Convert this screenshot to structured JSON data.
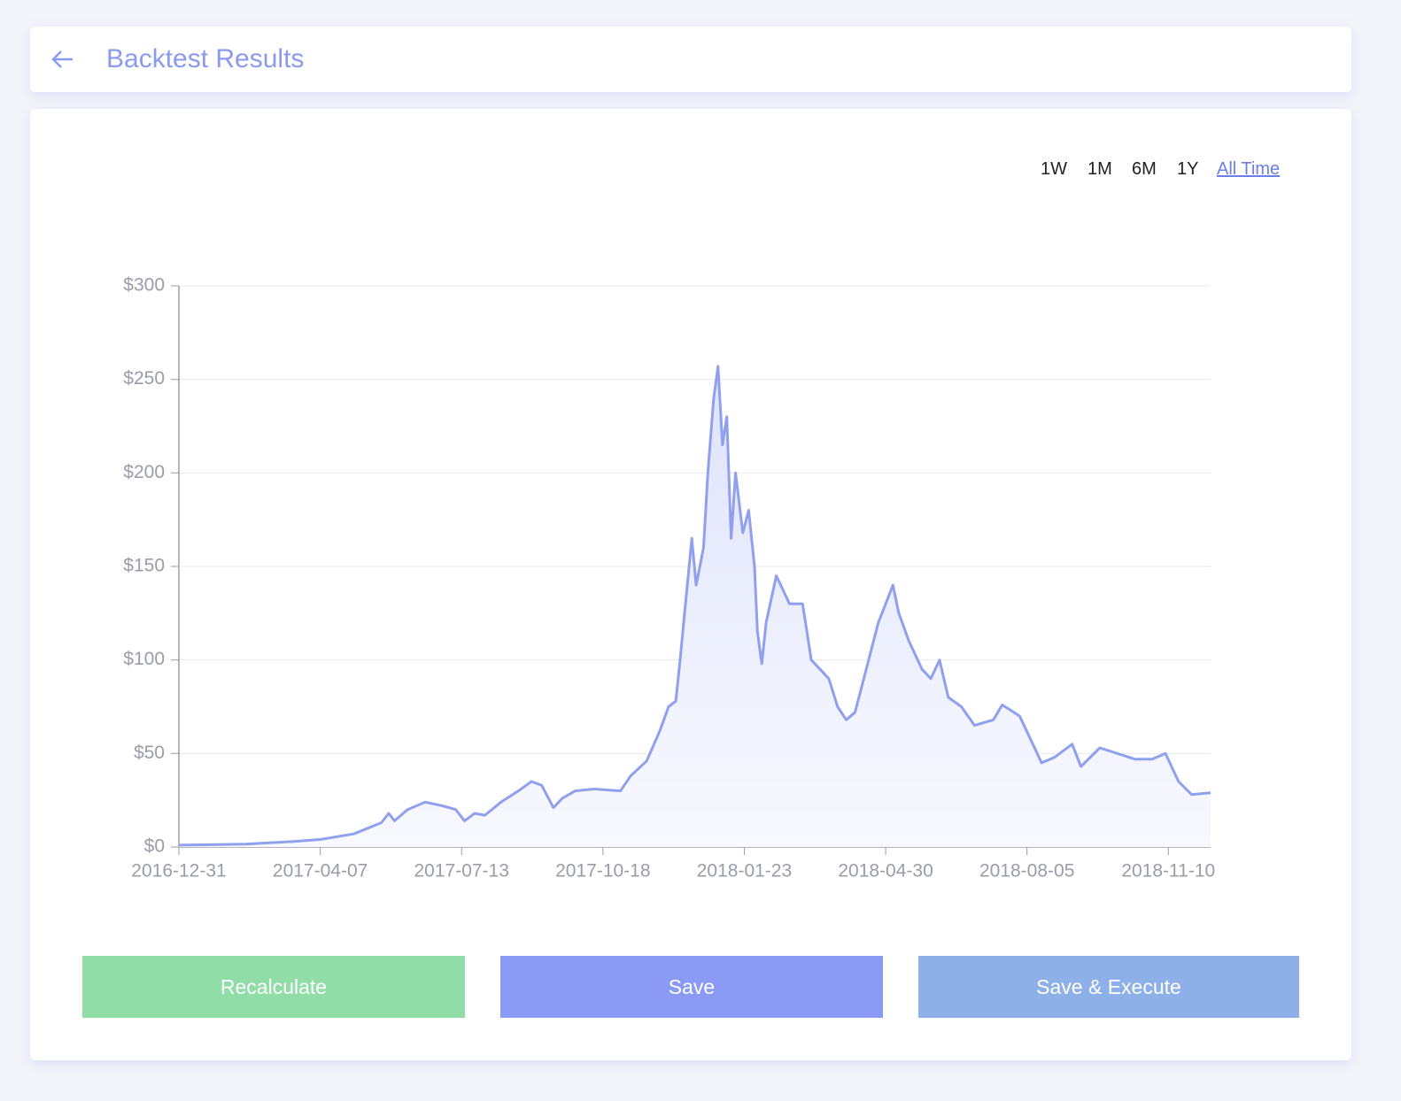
{
  "header": {
    "title": "Backtest Results"
  },
  "range_options": [
    "1W",
    "1M",
    "6M",
    "1Y",
    "All Time"
  ],
  "chart_data": {
    "type": "line",
    "color": "#8fa0ee",
    "x": [
      "2016-12-31",
      "2017-02-15",
      "2017-03-20",
      "2017-04-07",
      "2017-04-30",
      "2017-05-19",
      "2017-05-24",
      "2017-05-28",
      "2017-06-06",
      "2017-06-18",
      "2017-06-30",
      "2017-07-09",
      "2017-07-15",
      "2017-07-22",
      "2017-07-29",
      "2017-08-09",
      "2017-08-21",
      "2017-08-30",
      "2017-09-06",
      "2017-09-14",
      "2017-09-20",
      "2017-09-29",
      "2017-10-12",
      "2017-10-30",
      "2017-11-06",
      "2017-11-17",
      "2017-11-26",
      "2017-12-02",
      "2017-12-07",
      "2017-12-10",
      "2017-12-13",
      "2017-12-18",
      "2017-12-21",
      "2017-12-26",
      "2017-12-29",
      "2018-01-02",
      "2018-01-05",
      "2018-01-08",
      "2018-01-11",
      "2018-01-14",
      "2018-01-17",
      "2018-01-22",
      "2018-01-26",
      "2018-01-30",
      "2018-02-01",
      "2018-02-04",
      "2018-02-07",
      "2018-02-14",
      "2018-02-17",
      "2018-02-23",
      "2018-03-04",
      "2018-03-10",
      "2018-03-16",
      "2018-03-22",
      "2018-03-28",
      "2018-04-03",
      "2018-04-09",
      "2018-04-15",
      "2018-04-25",
      "2018-04-30",
      "2018-05-05",
      "2018-05-09",
      "2018-05-16",
      "2018-05-25",
      "2018-05-31",
      "2018-06-06",
      "2018-06-12",
      "2018-06-21",
      "2018-06-30",
      "2018-07-13",
      "2018-07-19",
      "2018-07-31",
      "2018-08-09",
      "2018-08-15",
      "2018-08-24",
      "2018-09-05",
      "2018-09-11",
      "2018-09-24",
      "2018-10-06",
      "2018-10-18",
      "2018-10-30",
      "2018-11-08",
      "2018-11-17",
      "2018-11-26",
      "2018-12-09"
    ],
    "values": [
      1,
      1.5,
      3,
      4,
      7,
      13,
      18,
      14,
      20,
      24,
      22,
      20,
      14,
      18,
      17,
      24,
      30,
      35,
      33,
      21,
      26,
      30,
      31,
      30,
      38,
      46,
      62,
      75,
      78,
      100,
      125,
      165,
      140,
      160,
      200,
      240,
      257,
      215,
      230,
      165,
      200,
      168,
      180,
      150,
      115,
      98,
      120,
      145,
      140,
      130,
      130,
      100,
      95,
      90,
      75,
      68,
      72,
      90,
      120,
      130,
      140,
      125,
      110,
      95,
      90,
      100,
      80,
      75,
      65,
      68,
      76,
      70,
      55,
      45,
      48,
      55,
      43,
      53,
      50,
      47,
      47,
      50,
      35,
      28,
      29
    ],
    "xlim": [
      "2016-12-31",
      "2018-12-09"
    ],
    "xticks": [
      "2016-12-31",
      "2017-04-07",
      "2017-07-13",
      "2017-10-18",
      "2018-01-23",
      "2018-04-30",
      "2018-08-05",
      "2018-11-10"
    ],
    "ylim": [
      0,
      300
    ],
    "yticks": [
      {
        "value": 0,
        "label": "$0"
      },
      {
        "value": 50,
        "label": "$50"
      },
      {
        "value": 100,
        "label": "$100"
      },
      {
        "value": 150,
        "label": "$150"
      },
      {
        "value": 200,
        "label": "$200"
      },
      {
        "value": 250,
        "label": "$250"
      },
      {
        "value": 300,
        "label": "$300"
      }
    ],
    "grid": true
  },
  "buttons": [
    "Recalculate",
    "Save",
    "Save & Execute"
  ]
}
